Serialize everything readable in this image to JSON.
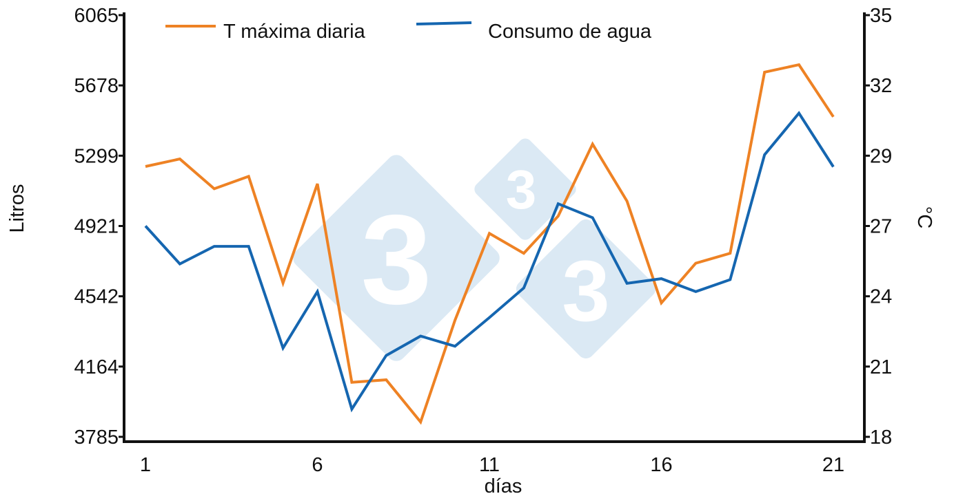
{
  "chart_data": {
    "type": "line",
    "xlabel": "días",
    "ylabel_left": "Litros",
    "ylabel_right": "°C",
    "x_ticks": [
      "1",
      "6",
      "11",
      "16",
      "21"
    ],
    "y_left_ticks": [
      "3785",
      "4164",
      "4542",
      "4921",
      "5299",
      "5678",
      "6065"
    ],
    "y_right_ticks": [
      "18",
      "21",
      "24",
      "27",
      "29",
      "32",
      "35"
    ],
    "x": [
      1,
      2,
      3,
      4,
      5,
      6,
      7,
      8,
      9,
      10,
      11,
      12,
      13,
      14,
      15,
      16,
      17,
      18,
      19,
      20,
      21
    ],
    "series": [
      {
        "name": "T máxima diaria",
        "color": "#ee8224",
        "axis": "right",
        "values": [
          28.9,
          29.2,
          28.0,
          28.5,
          24.2,
          28.2,
          20.2,
          20.3,
          18.6,
          22.7,
          26.2,
          25.4,
          26.9,
          29.8,
          27.5,
          23.4,
          25.0,
          25.4,
          32.7,
          33.0,
          30.9
        ]
      },
      {
        "name": "Consumo de agua",
        "color": "#1566b0",
        "axis": "left",
        "values": [
          4925,
          4720,
          4815,
          4815,
          4265,
          4570,
          3935,
          4225,
          4330,
          4275,
          4430,
          4590,
          5045,
          4970,
          4615,
          4640,
          4570,
          4635,
          5310,
          5535,
          5245
        ]
      }
    ],
    "legend_position": "top",
    "grid": false
  },
  "watermark": {
    "digit": "3",
    "color": "#dbe9f4"
  }
}
